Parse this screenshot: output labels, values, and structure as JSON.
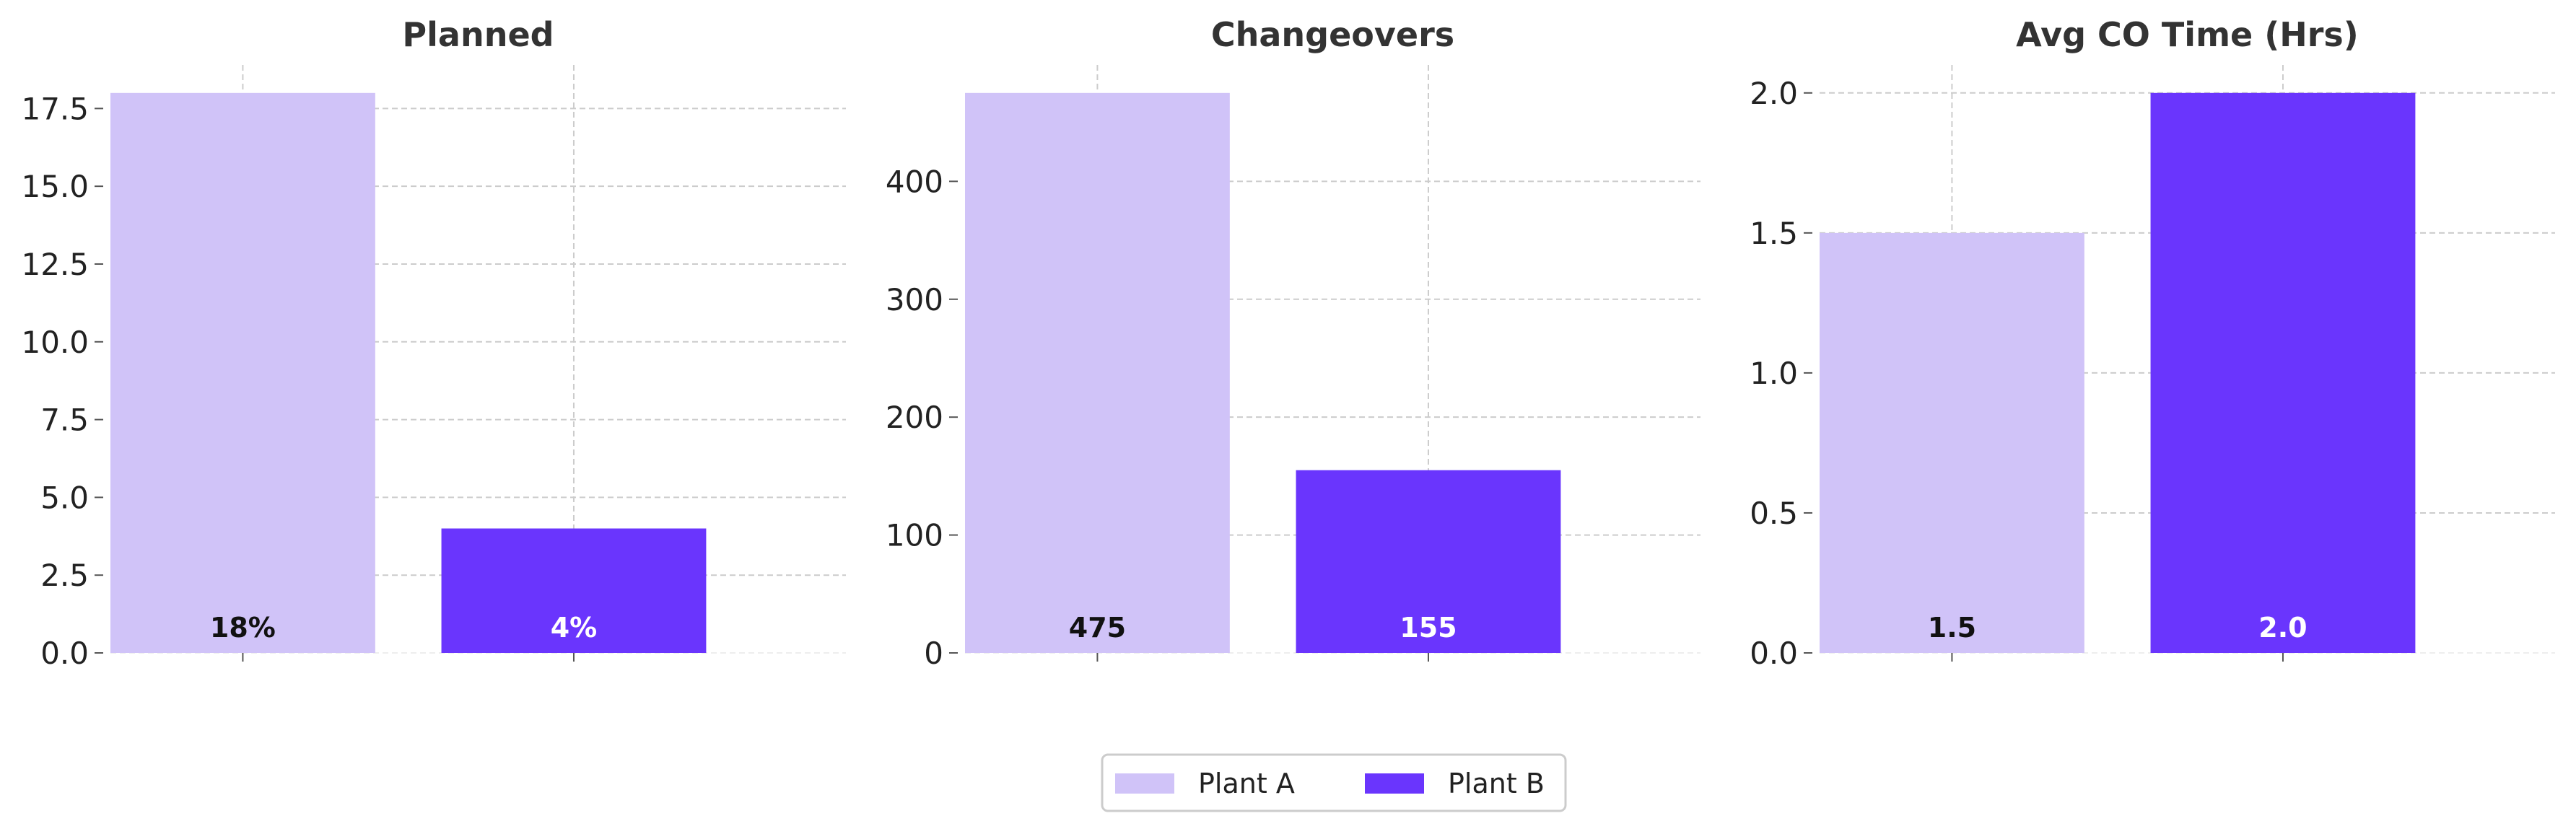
{
  "colors": {
    "plant_a": "#d0c3f8",
    "plant_b": "#6a35fd",
    "grid": "#cccccc",
    "axis_text": "#222222",
    "title_text": "#333333"
  },
  "legend": {
    "items": [
      "Plant A",
      "Plant B"
    ],
    "placement": "bottom-center"
  },
  "chart_data": [
    {
      "type": "bar",
      "title": "Planned",
      "categories": [
        "Plant A",
        "Plant B"
      ],
      "values": [
        18,
        4
      ],
      "data_labels": [
        "18%",
        "4%"
      ],
      "ylim": [
        0,
        18.9
      ],
      "yticks": [
        0,
        2.5,
        5,
        7.5,
        10,
        12.5,
        15,
        17.5
      ],
      "ytick_labels": [
        "0.0",
        "2.5",
        "5.0",
        "7.5",
        "10.0",
        "12.5",
        "15.0",
        "17.5"
      ],
      "xlabel": "",
      "ylabel": "",
      "grid": true
    },
    {
      "type": "bar",
      "title": "Changeovers",
      "categories": [
        "Plant A",
        "Plant B"
      ],
      "values": [
        475,
        155
      ],
      "data_labels": [
        "475",
        "155"
      ],
      "ylim": [
        0,
        498.75
      ],
      "yticks": [
        0,
        100,
        200,
        300,
        400
      ],
      "ytick_labels": [
        "0",
        "100",
        "200",
        "300",
        "400"
      ],
      "xlabel": "",
      "ylabel": "",
      "grid": true
    },
    {
      "type": "bar",
      "title": "Avg CO Time (Hrs)",
      "categories": [
        "Plant A",
        "Plant B"
      ],
      "values": [
        1.5,
        2.0
      ],
      "data_labels": [
        "1.5",
        "2.0"
      ],
      "ylim": [
        0,
        2.1
      ],
      "yticks": [
        0,
        0.5,
        1.0,
        1.5,
        2.0
      ],
      "ytick_labels": [
        "0.0",
        "0.5",
        "1.0",
        "1.5",
        "2.0"
      ],
      "xlabel": "",
      "ylabel": "",
      "grid": true
    }
  ]
}
